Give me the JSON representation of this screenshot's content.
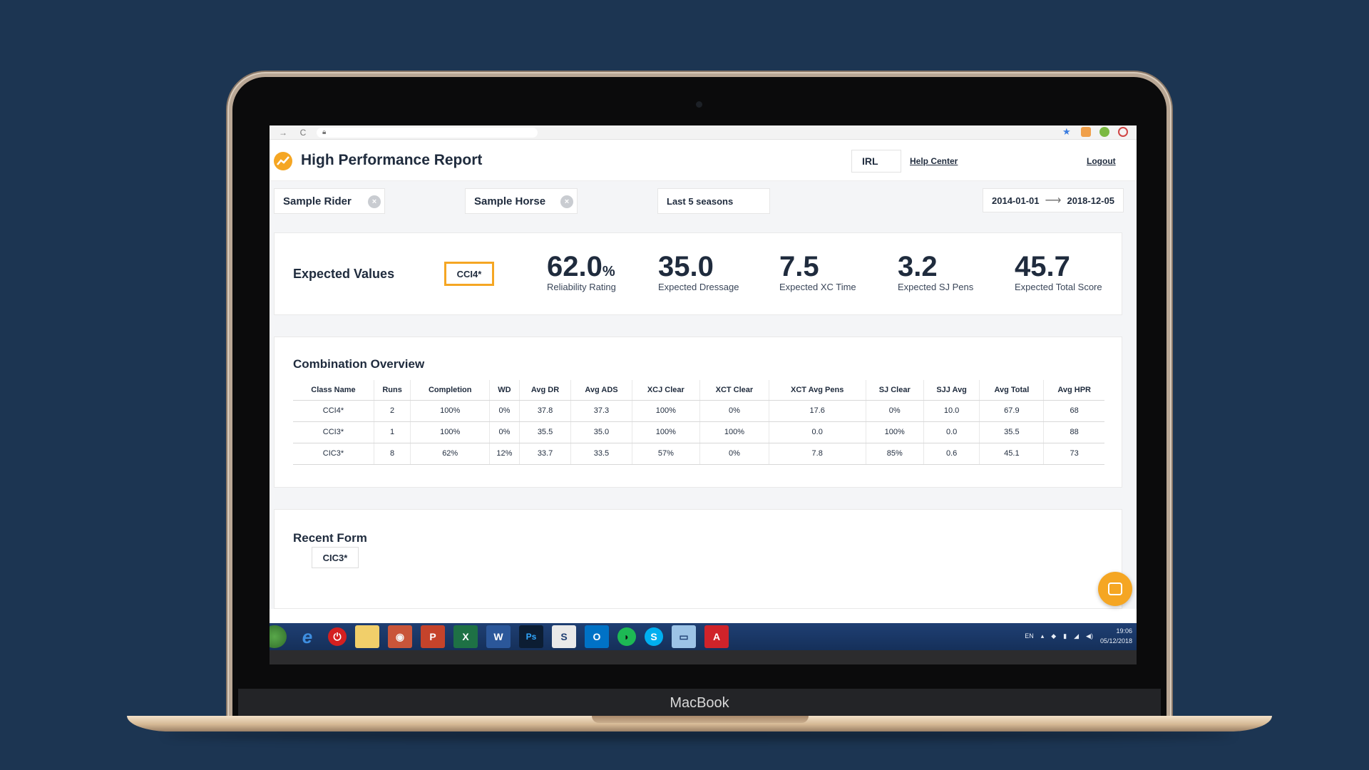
{
  "device": {
    "brand_label": "MacBook"
  },
  "browser": {
    "nav_back": "→",
    "nav_reload": "C"
  },
  "app": {
    "title": "High Performance Report",
    "country": "IRL",
    "help_label": "Help Center",
    "logout_label": "Logout"
  },
  "filters": {
    "rider": "Sample Rider",
    "horse": "Sample Horse",
    "period": "Last 5 seasons",
    "date_from": "2014-01-01",
    "date_to": "2018-12-05",
    "arrow": "⟶"
  },
  "expected_values": {
    "title": "Expected Values",
    "class_input": "CCI4*",
    "metrics": [
      {
        "value": "62.0",
        "unit": "%",
        "label": "Reliability Rating"
      },
      {
        "value": "35.0",
        "unit": "",
        "label": "Expected Dressage"
      },
      {
        "value": "7.5",
        "unit": "",
        "label": "Expected XC Time"
      },
      {
        "value": "3.2",
        "unit": "",
        "label": "Expected SJ Pens"
      },
      {
        "value": "45.7",
        "unit": "",
        "label": "Expected Total Score"
      }
    ]
  },
  "combination_overview": {
    "title": "Combination Overview",
    "columns": [
      "Class Name",
      "Runs",
      "Completion",
      "WD",
      "Avg DR",
      "Avg ADS",
      "XCJ Clear",
      "XCT Clear",
      "XCT Avg Pens",
      "SJ Clear",
      "SJJ Avg",
      "Avg Total",
      "Avg HPR"
    ],
    "rows": [
      [
        "CCI4*",
        "2",
        "100%",
        "0%",
        "37.8",
        "37.3",
        "100%",
        "0%",
        "17.6",
        "0%",
        "10.0",
        "67.9",
        "68"
      ],
      [
        "CCI3*",
        "1",
        "100%",
        "0%",
        "35.5",
        "35.0",
        "100%",
        "100%",
        "0.0",
        "100%",
        "0.0",
        "35.5",
        "88"
      ],
      [
        "CIC3*",
        "8",
        "62%",
        "12%",
        "33.7",
        "33.5",
        "57%",
        "0%",
        "7.8",
        "85%",
        "0.6",
        "45.1",
        "73"
      ]
    ]
  },
  "recent_form": {
    "title": "Recent Form",
    "tag": "CIC3*"
  },
  "taskbar": {
    "icons": [
      "windows-start-icon",
      "internet-explorer-icon",
      "power-icon",
      "file-explorer-icon",
      "chrome-icon",
      "powerpoint-icon",
      "excel-icon",
      "word-icon",
      "photoshop-icon",
      "sway-icon",
      "outlook-icon",
      "spotify-icon",
      "skype-icon",
      "remote-desktop-icon",
      "acrobat-icon"
    ],
    "icon_glyphs": [
      "",
      "e",
      "⏻",
      "",
      "◉",
      "P",
      "X",
      "W",
      "Ps",
      "S",
      "O",
      "◗",
      "S",
      "▭",
      "A"
    ],
    "language": "EN",
    "time": "19:06",
    "date": "05/12/2018"
  },
  "colors": {
    "accent": "#f5a623",
    "text_dark": "#1f2b3d",
    "background": "#1c3552"
  }
}
